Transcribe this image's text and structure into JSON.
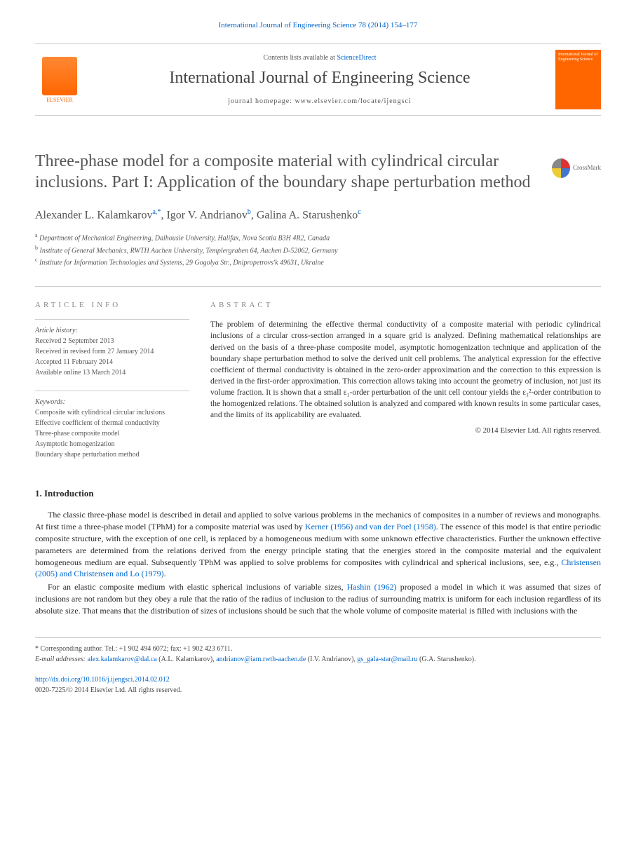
{
  "header": {
    "citation": "International Journal of Engineering Science 78 (2014) 154–177",
    "contents_prefix": "Contents lists available at ",
    "contents_link": "ScienceDirect",
    "journal_name": "International Journal of Engineering Science",
    "homepage_prefix": "journal homepage: ",
    "homepage_url": "www.elsevier.com/locate/ijengsci",
    "publisher_name": "ELSEVIER",
    "cover_text": "International Journal of Engineering Science"
  },
  "crossmark_label": "CrossMark",
  "title": "Three-phase model for a composite material with cylindrical circular inclusions. Part I: Application of the boundary shape perturbation method",
  "authors": {
    "a1_name": "Alexander L. Kalamkarov",
    "a1_sup": "a,",
    "a1_star": "*",
    "a2_name": ", Igor V. Andrianov",
    "a2_sup": "b",
    "a3_name": ", Galina A. Starushenko",
    "a3_sup": "c"
  },
  "affiliations": {
    "a": "Department of Mechanical Engineering, Dalhousie University, Halifax, Nova Scotia B3H 4R2, Canada",
    "b": "Institute of General Mechanics, RWTH Aachen University, Templergraben 64, Aachen D-52062, Germany",
    "c": "Institute for Information Technologies and Systems, 29 Gogolya Str., Dnipropetrovs'k 49631, Ukraine"
  },
  "article_info": {
    "heading": "ARTICLE INFO",
    "history_label": "Article history:",
    "received": "Received 2 September 2013",
    "revised": "Received in revised form 27 January 2014",
    "accepted": "Accepted 11 February 2014",
    "online": "Available online 13 March 2014",
    "keywords_label": "Keywords:",
    "kw1": "Composite with cylindrical circular inclusions",
    "kw2": "Effective coefficient of thermal conductivity",
    "kw3": "Three-phase composite model",
    "kw4": "Asymptotic homogenization",
    "kw5": "Boundary shape perturbation method"
  },
  "abstract": {
    "heading": "ABSTRACT",
    "text": "The problem of determining the effective thermal conductivity of a composite material with periodic cylindrical inclusions of a circular cross-section arranged in a square grid is analyzed. Defining mathematical relationships are derived on the basis of a three-phase composite model, asymptotic homogenization technique and application of the boundary shape perturbation method to solve the derived unit cell problems. The analytical expression for the effective coefficient of thermal conductivity is obtained in the zero-order approximation and the correction to this expression is derived in the first-order approximation. This correction allows taking into account the geometry of inclusion, not just its volume fraction. It is shown that a small ε₁-order perturbation of the unit cell contour yields the ε₁²-order contribution to the homogenized relations. The obtained solution is analyzed and compared with known results in some particular cases, and the limits of its applicability are evaluated.",
    "copyright": "© 2014 Elsevier Ltd. All rights reserved."
  },
  "intro": {
    "heading": "1. Introduction",
    "p1_a": "The classic three-phase model is described in detail and applied to solve various problems in the mechanics of composites in a number of reviews and monographs. At first time a three-phase model (TPhM) for a composite material was used by ",
    "p1_link1": "Kerner (1956) and van der Poel (1958)",
    "p1_b": ". The essence of this model is that entire periodic composite structure, with the exception of one cell, is replaced by a homogeneous medium with some unknown effective characteristics. Further the unknown effective parameters are determined from the relations derived from the energy principle stating that the energies stored in the composite material and the equivalent homogeneous medium are equal. Subsequently TPhM was applied to solve problems for composites with cylindrical and spherical inclusions, see, e.g., ",
    "p1_link2": "Christensen (2005) and Christensen and Lo (1979)",
    "p1_c": ".",
    "p2_a": "For an elastic composite medium with elastic spherical inclusions of variable sizes, ",
    "p2_link1": "Hashin (1962)",
    "p2_b": " proposed a model in which it was assumed that sizes of inclusions are not random but they obey a rule that the ratio of the radius of inclusion to the radius of surrounding matrix is uniform for each inclusion regardless of its absolute size. That means that the distribution of sizes of inclusions should be such that the whole volume of composite material is filled with inclusions with the"
  },
  "footer": {
    "corr_label": "* Corresponding author. Tel.: +1 902 494 6072; fax: +1 902 423 6711.",
    "email_label": "E-mail addresses: ",
    "email1": "alex.kalamkarov@dal.ca",
    "email1_name": " (A.L. Kalamkarov), ",
    "email2": "andrianov@iam.rwth-aachen.de",
    "email2_name": " (I.V. Andrianov), ",
    "email3": "gs_gala-star@mail.ru",
    "email3_name": " (G.A. Starushenko).",
    "doi": "http://dx.doi.org/10.1016/j.ijengsci.2014.02.012",
    "issn": "0020-7225/© 2014 Elsevier Ltd. All rights reserved."
  },
  "colors": {
    "link": "#0066cc",
    "elsevier_orange": "#ff6600",
    "text_gray": "#555555",
    "heading_gray": "#888888"
  }
}
